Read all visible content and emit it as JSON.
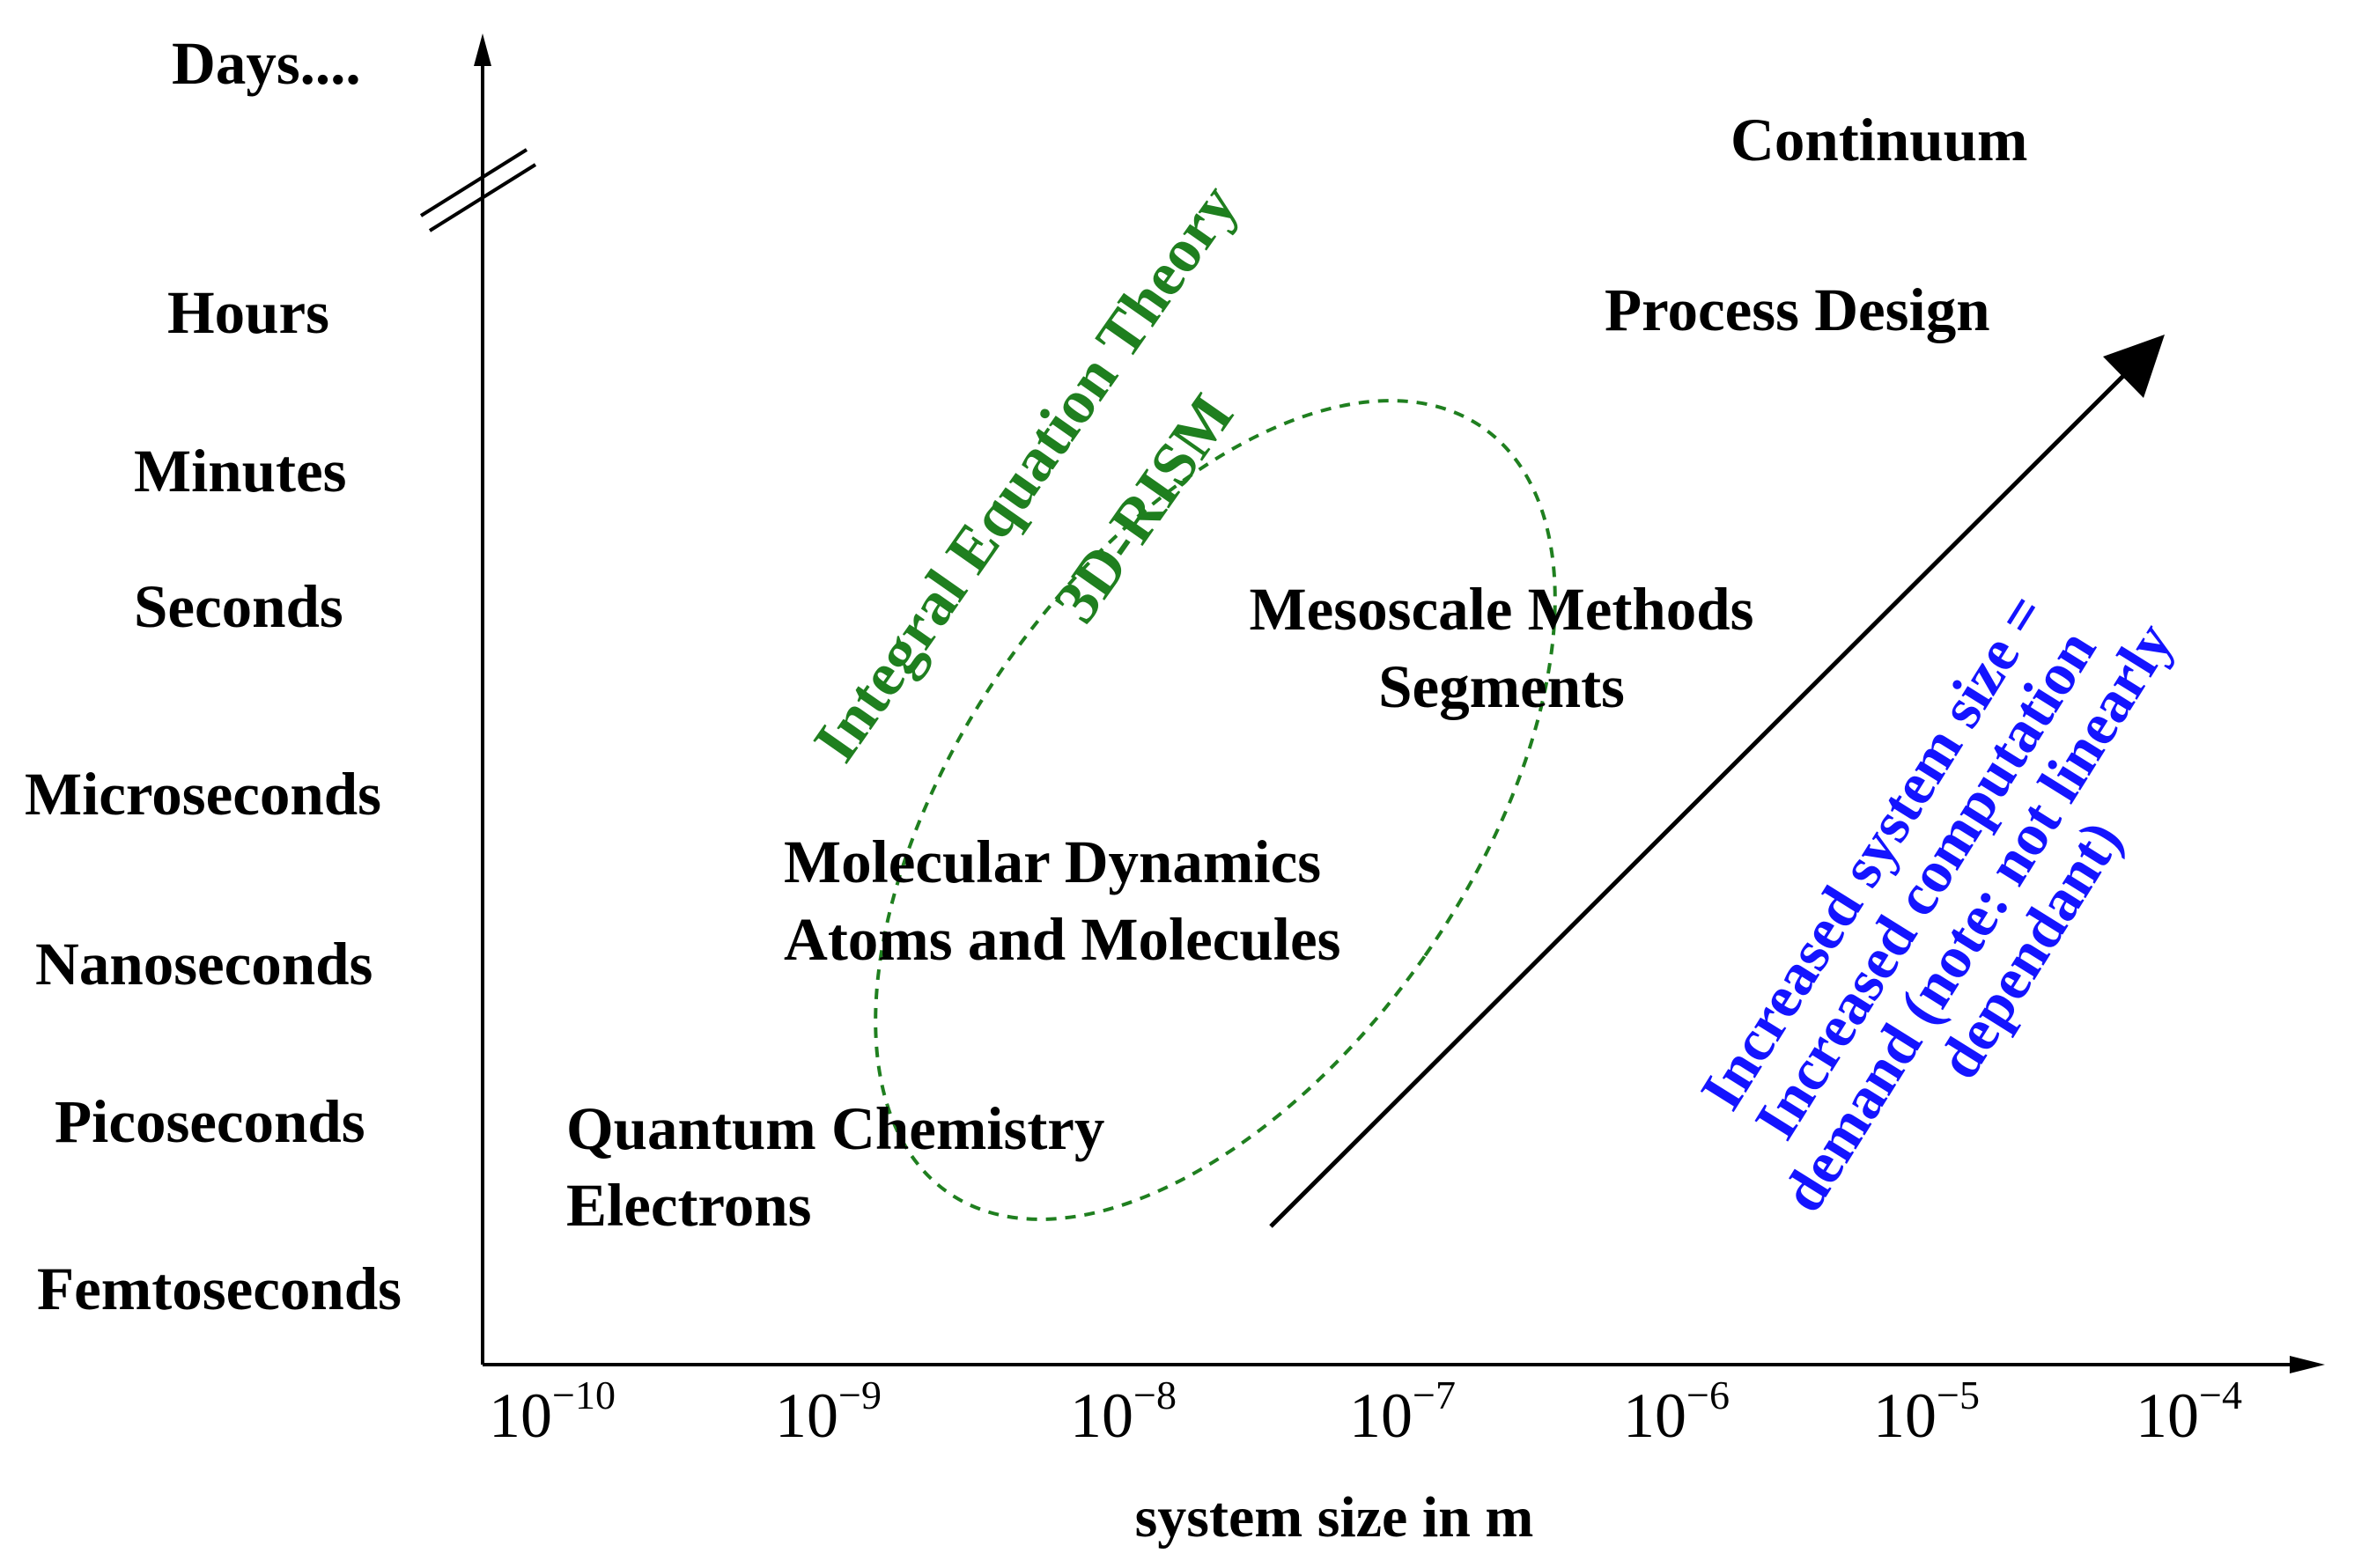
{
  "colors": {
    "axis": "#000000",
    "green": "#1f7f1f",
    "blue": "#1414ff",
    "text": "#000000"
  },
  "y_axis": {
    "labels": [
      "Days....",
      "Hours",
      "Minutes",
      "Seconds",
      "Microseconds",
      "Nanoseconds",
      "Picoseconds",
      "Femtoseconds"
    ]
  },
  "x_axis": {
    "ticks": [
      {
        "base": "10",
        "exp": "−10"
      },
      {
        "base": "10",
        "exp": "−9"
      },
      {
        "base": "10",
        "exp": "−8"
      },
      {
        "base": "10",
        "exp": "−7"
      },
      {
        "base": "10",
        "exp": "−6"
      },
      {
        "base": "10",
        "exp": "−5"
      },
      {
        "base": "10",
        "exp": "−4"
      }
    ],
    "title": "system size in m"
  },
  "regions": {
    "continuum": "Continuum",
    "process_design": "Process Design",
    "mesoscale_line1": "Mesoscale Methods",
    "mesoscale_line2": "Segments",
    "md_line1": "Molecular Dynamics",
    "md_line2": "Atoms and Molecules",
    "qc_line1": "Quantum Chemistry",
    "qc_line2": "Electrons"
  },
  "integral_theory": {
    "line1": "Integral Equation Theory",
    "line2": "3D-RISM"
  },
  "computation_note": {
    "line1": "Increased system size =",
    "line2": "Increased computation",
    "line3": "demand (note: not linearly",
    "line4": "dependant)"
  }
}
